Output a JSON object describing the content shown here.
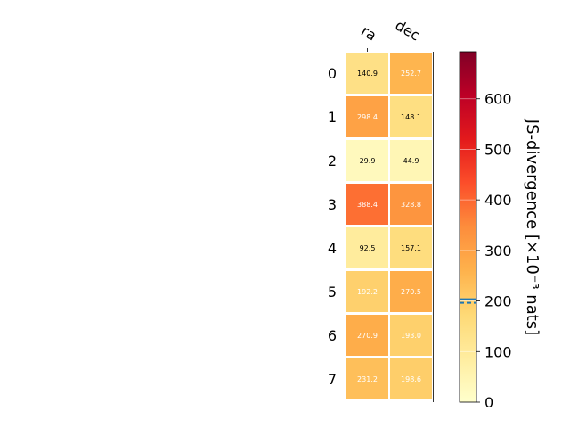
{
  "chart_data": {
    "type": "heatmap",
    "columns": [
      "ra",
      "dec"
    ],
    "rows": [
      "0",
      "1",
      "2",
      "3",
      "4",
      "5",
      "6",
      "7"
    ],
    "values": [
      [
        140.9,
        252.7
      ],
      [
        298.4,
        148.1
      ],
      [
        29.9,
        44.9
      ],
      [
        388.4,
        328.8
      ],
      [
        92.5,
        157.1
      ],
      [
        192.2,
        270.5
      ],
      [
        270.9,
        193.0
      ],
      [
        231.2,
        198.6
      ]
    ],
    "value_labels": [
      [
        "140.9",
        "252.7"
      ],
      [
        "298.4",
        "148.1"
      ],
      [
        "29.9",
        "44.9"
      ],
      [
        "388.4",
        "328.8"
      ],
      [
        "92.5",
        "157.1"
      ],
      [
        "192.2",
        "270.5"
      ],
      [
        "270.9",
        "193.0"
      ],
      [
        "231.2",
        "198.6"
      ]
    ],
    "colorbar": {
      "label": "JS-divergence [×10⁻³ nats]",
      "range": [
        0,
        693
      ],
      "ticks": [
        "0",
        "100",
        "200",
        "300",
        "400",
        "500",
        "600"
      ],
      "tick_values": [
        0,
        100,
        200,
        300,
        400,
        500,
        600
      ],
      "marker_value": 200,
      "marker_color": "#1f77b4",
      "colormap": "YlOrRd"
    }
  }
}
